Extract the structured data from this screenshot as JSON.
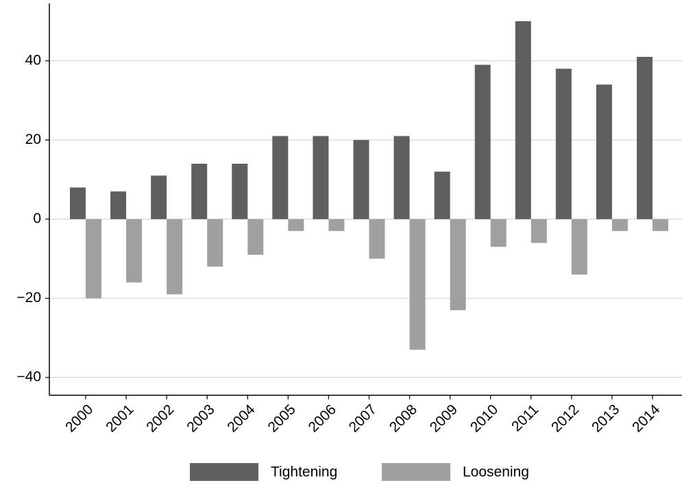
{
  "chart_data": {
    "type": "bar",
    "categories": [
      "2000",
      "2001",
      "2002",
      "2003",
      "2004",
      "2005",
      "2006",
      "2007",
      "2008",
      "2009",
      "2010",
      "2011",
      "2012",
      "2013",
      "2014"
    ],
    "series": [
      {
        "name": "Tightening",
        "color": "#5f5f5f",
        "values": [
          8,
          7,
          11,
          14,
          14,
          21,
          21,
          20,
          21,
          12,
          39,
          50,
          38,
          34,
          41
        ]
      },
      {
        "name": "Loosening",
        "color": "#a0a0a0",
        "values": [
          -20,
          -16,
          -19,
          -12,
          -9,
          -3,
          -3,
          -10,
          -33,
          -23,
          -7,
          -6,
          -14,
          -3,
          -3
        ]
      }
    ],
    "ylim": [
      -44.5,
      54.5
    ],
    "yticks": [
      {
        "value": -40,
        "label": "−40"
      },
      {
        "value": -20,
        "label": "−20"
      },
      0,
      20,
      40
    ],
    "grid": true,
    "legend": "bottom"
  }
}
